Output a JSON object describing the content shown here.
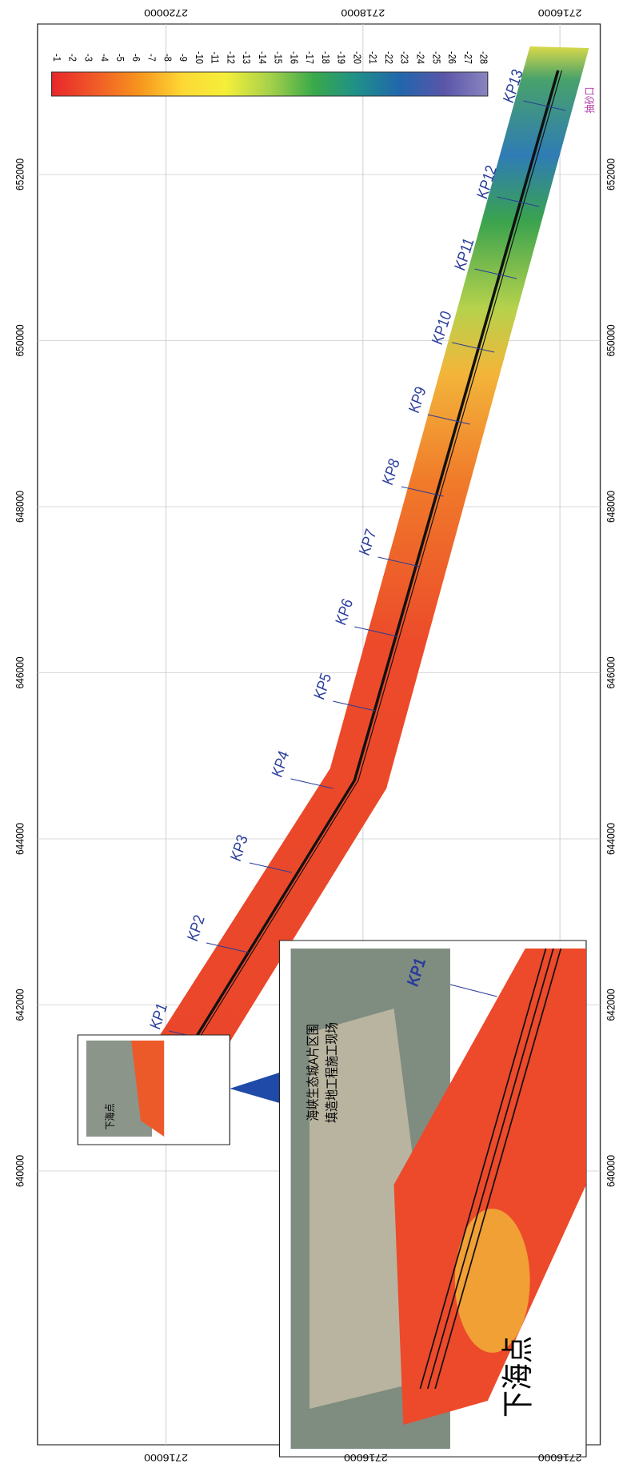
{
  "map": {
    "easting_ticks": [
      640000,
      642000,
      644000,
      646000,
      648000,
      650000,
      652000
    ],
    "northing_ticks": [
      2720000,
      2718000,
      2716000
    ],
    "northing_labels_bottom": [
      "2716000",
      "2716000",
      "2716000"
    ],
    "colorbar": {
      "labels": [
        -1,
        -2,
        -3,
        -4,
        -5,
        -6,
        -7,
        -8,
        -9,
        -10,
        -11,
        -12,
        -13,
        -14,
        -15,
        -16,
        -17,
        -18,
        -19,
        -20,
        -21,
        -22,
        -23,
        -24,
        -25,
        -26,
        -27,
        -28
      ],
      "colors": [
        "#e8262a",
        "#f05a28",
        "#f7941d",
        "#fdd835",
        "#f4ef3a",
        "#a6d14a",
        "#3aaa4a",
        "#1f8f8a",
        "#2166ac",
        "#5a55a8",
        "#8a84c0"
      ]
    },
    "kp_labels": [
      "KP1",
      "KP2",
      "KP3",
      "KP4",
      "KP5",
      "KP6",
      "KP7",
      "KP8",
      "KP9",
      "KP10",
      "KP11",
      "KP12",
      "KP13"
    ],
    "landing_point": "下海点",
    "site_label": [
      "海峡生态城A片区围",
      "填造地工程施工现场"
    ],
    "sand_intake": "抽砂口"
  }
}
